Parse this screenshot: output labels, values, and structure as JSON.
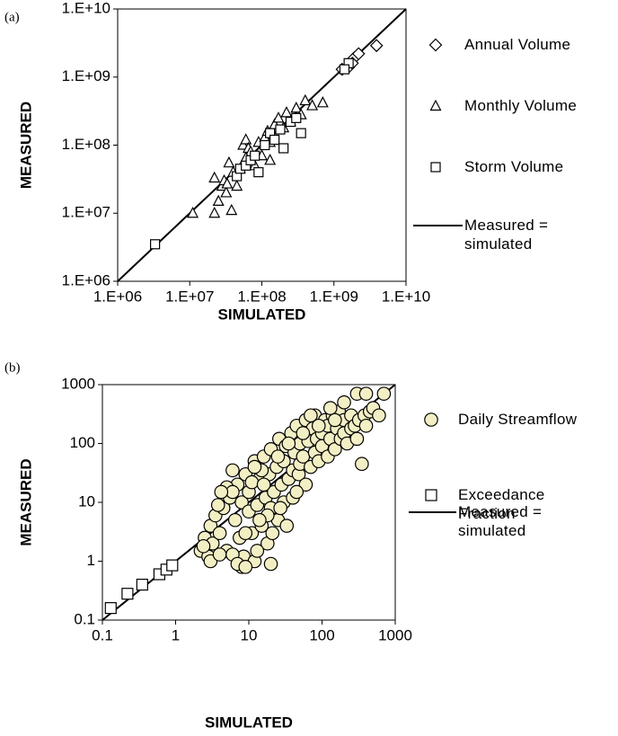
{
  "chart_data": [
    {
      "type": "scatter",
      "label": "(a)",
      "xlabel": "SIMULATED",
      "ylabel": "MEASURED",
      "log_scale": true,
      "xlim": [
        1000000.0,
        10000000000.0
      ],
      "ylim": [
        1000000.0,
        10000000000.0
      ],
      "xticks": [
        {
          "value": 1000000.0,
          "label": "1.E+06"
        },
        {
          "value": 10000000.0,
          "label": "1.E+07"
        },
        {
          "value": 100000000.0,
          "label": "1.E+08"
        },
        {
          "value": 1000000000.0,
          "label": "1.E+09"
        },
        {
          "value": 10000000000.0,
          "label": "1.E+10"
        }
      ],
      "yticks": [
        {
          "value": 1000000.0,
          "label": "1.E+06"
        },
        {
          "value": 10000000.0,
          "label": "1.E+07"
        },
        {
          "value": 100000000.0,
          "label": "1.E+08"
        },
        {
          "value": 1000000000.0,
          "label": "1.E+09"
        },
        {
          "value": 10000000000.0,
          "label": "1.E+10"
        }
      ],
      "series": [
        {
          "name": "Annual Volume",
          "marker": "diamond",
          "color": "#ffffff",
          "x": [
            1300000000.0,
            1600000000.0,
            1900000000.0,
            2200000000.0,
            3900000000.0,
            1800000000.0
          ],
          "values": [
            1300000000.0,
            1400000000.0,
            1900000000.0,
            2200000000.0,
            2900000000.0,
            1600000000.0
          ]
        },
        {
          "name": "Monthly Volume",
          "marker": "triangle",
          "color": "#ffffff",
          "x": [
            11000000.0,
            22000000.0,
            22000000.0,
            25000000.0,
            28000000.0,
            30000000.0,
            32000000.0,
            35000000.0,
            38000000.0,
            40000000.0,
            45000000.0,
            50000000.0,
            55000000.0,
            60000000.0,
            65000000.0,
            70000000.0,
            80000000.0,
            90000000.0,
            100000000.0,
            110000000.0,
            120000000.0,
            130000000.0,
            150000000.0,
            170000000.0,
            200000000.0,
            220000000.0,
            250000000.0,
            300000000.0,
            350000000.0,
            400000000.0,
            500000000.0,
            700000000.0,
            33000000.0,
            60000000.0,
            130000000.0
          ],
          "values": [
            10000000.0,
            10000000.0,
            33000000.0,
            15000000.0,
            25000000.0,
            30000000.0,
            20000000.0,
            55000000.0,
            11000000.0,
            40000000.0,
            25000000.0,
            45000000.0,
            100000000.0,
            120000000.0,
            90000000.0,
            80000000.0,
            50000000.0,
            110000000.0,
            70000000.0,
            130000000.0,
            160000000.0,
            60000000.0,
            200000000.0,
            250000000.0,
            180000000.0,
            300000000.0,
            220000000.0,
            350000000.0,
            280000000.0,
            450000000.0,
            380000000.0,
            420000000.0,
            27000000.0,
            65000000.0,
            110000000.0
          ]
        },
        {
          "name": "Storm Volume",
          "marker": "square",
          "color": "#ffffff",
          "x": [
            3300000.0,
            45000000.0,
            50000000.0,
            60000000.0,
            70000000.0,
            80000000.0,
            90000000.0,
            110000000.0,
            130000000.0,
            150000000.0,
            180000000.0,
            200000000.0,
            250000000.0,
            300000000.0,
            350000000.0,
            1600000000.0,
            1400000000.0
          ],
          "values": [
            3500000.0,
            35000000.0,
            45000000.0,
            50000000.0,
            60000000.0,
            70000000.0,
            40000000.0,
            100000000.0,
            150000000.0,
            120000000.0,
            170000000.0,
            90000000.0,
            220000000.0,
            250000000.0,
            150000000.0,
            1600000000.0,
            1300000000.0
          ]
        },
        {
          "name": "Measured = simulated",
          "marker": "line",
          "color": "#000000",
          "x": [
            1000000.0,
            10000000000.0
          ],
          "values": [
            1000000.0,
            10000000000.0
          ]
        }
      ]
    },
    {
      "type": "scatter",
      "label": "(b)",
      "xlabel": "SIMULATED",
      "ylabel": "MEASURED",
      "log_scale": true,
      "xlim": [
        0.1,
        1000
      ],
      "ylim": [
        0.1,
        1000
      ],
      "xticks": [
        0.1,
        1,
        10,
        100,
        1000
      ],
      "yticks": [
        0.1,
        1,
        10,
        100,
        1000
      ],
      "series": [
        {
          "name": "Daily Streamflow",
          "marker": "circle",
          "color": "#f3efc4",
          "x": [
            2.2,
            2.5,
            2.8,
            3,
            3.2,
            3.5,
            4,
            4.5,
            5,
            5.5,
            6,
            6.5,
            7,
            7.5,
            8,
            8.5,
            9,
            10,
            10,
            11,
            12,
            12,
            13,
            14,
            15,
            16,
            17,
            18,
            19,
            20,
            20,
            22,
            24,
            25,
            26,
            28,
            30,
            30,
            32,
            35,
            38,
            40,
            40,
            42,
            45,
            48,
            50,
            50,
            55,
            60,
            60,
            65,
            70,
            75,
            80,
            80,
            85,
            90,
            100,
            100,
            110,
            120,
            120,
            130,
            140,
            150,
            160,
            170,
            180,
            200,
            200,
            220,
            250,
            250,
            280,
            300,
            300,
            320,
            350,
            380,
            400,
            450,
            500,
            600,
            700,
            3,
            4,
            5,
            6,
            8,
            9,
            11,
            13,
            15,
            18,
            21,
            27,
            33,
            6,
            7,
            12,
            16,
            9,
            14,
            2.4,
            3.8,
            4.2,
            25,
            35,
            55,
            45,
            70,
            90,
            130,
            200,
            400,
            150,
            20
          ],
          "values": [
            1.5,
            2.5,
            1.2,
            4,
            2,
            6,
            3,
            8,
            1.5,
            12,
            35,
            5,
            20,
            2.5,
            10,
            1.2,
            30,
            7,
            15,
            3,
            50,
            1,
            9,
            25,
            4,
            60,
            12,
            2,
            30,
            80,
            8,
            15,
            40,
            5,
            120,
            20,
            50,
            10,
            90,
            25,
            150,
            35,
            12,
            70,
            200,
            30,
            100,
            45,
            60,
            250,
            20,
            110,
            40,
            180,
            70,
            300,
            120,
            50,
            150,
            90,
            250,
            60,
            200,
            120,
            300,
            80,
            180,
            350,
            120,
            250,
            150,
            100,
            300,
            180,
            200,
            700,
            120,
            250,
            45,
            300,
            200,
            350,
            400,
            300,
            700,
            1,
            1.3,
            18,
            1.3,
            0.8,
            3,
            22,
            1.5,
            35,
            6,
            3,
            8,
            4,
            15,
            0.9,
            40,
            20,
            0.8,
            5,
            1.8,
            9,
            15,
            60,
            100,
            150,
            15,
            300,
            200,
            400,
            500,
            700,
            250,
            0.9
          ]
        },
        {
          "name": "Exceedance Fraction",
          "marker": "square",
          "color": "#ffffff",
          "x": [
            0.13,
            0.22,
            0.35,
            0.6,
            0.75,
            0.9
          ],
          "values": [
            0.16,
            0.28,
            0.4,
            0.6,
            0.72,
            0.85
          ]
        },
        {
          "name": "Measured = simulated",
          "marker": "line",
          "color": "#000000",
          "x": [
            0.1,
            1000
          ],
          "values": [
            0.1,
            1000
          ]
        }
      ]
    }
  ]
}
